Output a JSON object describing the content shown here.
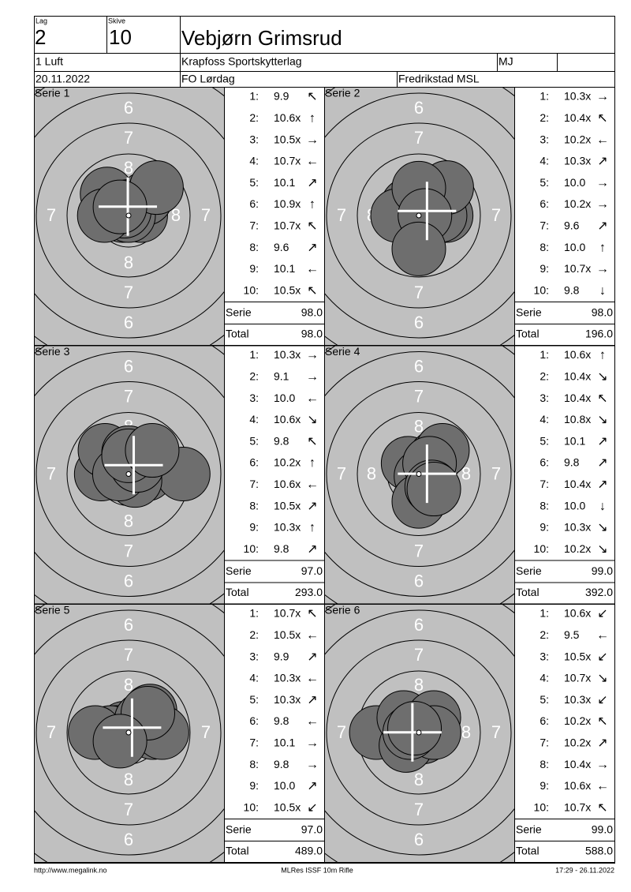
{
  "header": {
    "lag_label": "Lag",
    "lag": "2",
    "skive_label": "Skive",
    "skive": "10",
    "name": "Vebjørn Grimsrud",
    "class": "1 Luft",
    "club": "Krapfoss Sportskytterlag",
    "code": "MJ",
    "date": "20.11.2022",
    "event": "FO Lørdag",
    "location": "Fredrikstad MSL"
  },
  "ring_labels": [
    "6",
    "7",
    "8"
  ],
  "series": [
    {
      "title": "Serie 1",
      "shots": [
        {
          "no": "1:",
          "value": "9.9",
          "arrow": "↖"
        },
        {
          "no": "2:",
          "value": "10.6x",
          "arrow": "↑"
        },
        {
          "no": "3:",
          "value": "10.5x",
          "arrow": "→"
        },
        {
          "no": "4:",
          "value": "10.7x",
          "arrow": "←"
        },
        {
          "no": "5:",
          "value": "10.1",
          "arrow": "↗"
        },
        {
          "no": "6:",
          "value": "10.9x",
          "arrow": "↑"
        },
        {
          "no": "7:",
          "value": "10.7x",
          "arrow": "↖"
        },
        {
          "no": "8:",
          "value": "9.6",
          "arrow": "↗"
        },
        {
          "no": "9:",
          "value": "10.1",
          "arrow": "←"
        },
        {
          "no": "10:",
          "value": "10.5x",
          "arrow": "↖"
        }
      ],
      "serie_label": "Serie",
      "serie": "98.0",
      "total_label": "Total",
      "total": "98.0"
    },
    {
      "title": "Serie 2",
      "shots": [
        {
          "no": "1:",
          "value": "10.3x",
          "arrow": "→"
        },
        {
          "no": "2:",
          "value": "10.4x",
          "arrow": "↖"
        },
        {
          "no": "3:",
          "value": "10.2x",
          "arrow": "←"
        },
        {
          "no": "4:",
          "value": "10.3x",
          "arrow": "↗"
        },
        {
          "no": "5:",
          "value": "10.0",
          "arrow": "→"
        },
        {
          "no": "6:",
          "value": "10.2x",
          "arrow": "→"
        },
        {
          "no": "7:",
          "value": "9.6",
          "arrow": "↗"
        },
        {
          "no": "8:",
          "value": "10.0",
          "arrow": "↑"
        },
        {
          "no": "9:",
          "value": "10.7x",
          "arrow": "→"
        },
        {
          "no": "10:",
          "value": "9.8",
          "arrow": "↓"
        }
      ],
      "serie_label": "Serie",
      "serie": "98.0",
      "total_label": "Total",
      "total": "196.0"
    },
    {
      "title": "Serie 3",
      "shots": [
        {
          "no": "1:",
          "value": "10.3x",
          "arrow": "→"
        },
        {
          "no": "2:",
          "value": "9.1",
          "arrow": "→"
        },
        {
          "no": "3:",
          "value": "10.0",
          "arrow": "←"
        },
        {
          "no": "4:",
          "value": "10.6x",
          "arrow": "↘"
        },
        {
          "no": "5:",
          "value": "9.8",
          "arrow": "↖"
        },
        {
          "no": "6:",
          "value": "10.2x",
          "arrow": "↑"
        },
        {
          "no": "7:",
          "value": "10.6x",
          "arrow": "←"
        },
        {
          "no": "8:",
          "value": "10.5x",
          "arrow": "↗"
        },
        {
          "no": "9:",
          "value": "10.3x",
          "arrow": "↑"
        },
        {
          "no": "10:",
          "value": "9.8",
          "arrow": "↗"
        }
      ],
      "serie_label": "Serie",
      "serie": "97.0",
      "total_label": "Total",
      "total": "293.0"
    },
    {
      "title": "Serie 4",
      "shots": [
        {
          "no": "1:",
          "value": "10.6x",
          "arrow": "↑"
        },
        {
          "no": "2:",
          "value": "10.4x",
          "arrow": "↘"
        },
        {
          "no": "3:",
          "value": "10.4x",
          "arrow": "↖"
        },
        {
          "no": "4:",
          "value": "10.8x",
          "arrow": "↘"
        },
        {
          "no": "5:",
          "value": "10.1",
          "arrow": "↗"
        },
        {
          "no": "6:",
          "value": "9.8",
          "arrow": "↗"
        },
        {
          "no": "7:",
          "value": "10.4x",
          "arrow": "↗"
        },
        {
          "no": "8:",
          "value": "10.0",
          "arrow": "↓"
        },
        {
          "no": "9:",
          "value": "10.3x",
          "arrow": "↘"
        },
        {
          "no": "10:",
          "value": "10.2x",
          "arrow": "↘"
        }
      ],
      "serie_label": "Serie",
      "serie": "99.0",
      "total_label": "Total",
      "total": "392.0"
    },
    {
      "title": "Serie 5",
      "shots": [
        {
          "no": "1:",
          "value": "10.7x",
          "arrow": "↖"
        },
        {
          "no": "2:",
          "value": "10.5x",
          "arrow": "←"
        },
        {
          "no": "3:",
          "value": "9.9",
          "arrow": "↗"
        },
        {
          "no": "4:",
          "value": "10.3x",
          "arrow": "←"
        },
        {
          "no": "5:",
          "value": "10.3x",
          "arrow": "↗"
        },
        {
          "no": "6:",
          "value": "9.8",
          "arrow": "←"
        },
        {
          "no": "7:",
          "value": "10.1",
          "arrow": "→"
        },
        {
          "no": "8:",
          "value": "9.8",
          "arrow": "→"
        },
        {
          "no": "9:",
          "value": "10.0",
          "arrow": "↗"
        },
        {
          "no": "10:",
          "value": "10.5x",
          "arrow": "↙"
        }
      ],
      "serie_label": "Serie",
      "serie": "97.0",
      "total_label": "Total",
      "total": "489.0"
    },
    {
      "title": "Serie 6",
      "shots": [
        {
          "no": "1:",
          "value": "10.6x",
          "arrow": "↙"
        },
        {
          "no": "2:",
          "value": "9.5",
          "arrow": "←"
        },
        {
          "no": "3:",
          "value": "10.5x",
          "arrow": "↙"
        },
        {
          "no": "4:",
          "value": "10.7x",
          "arrow": "↘"
        },
        {
          "no": "5:",
          "value": "10.3x",
          "arrow": "↙"
        },
        {
          "no": "6:",
          "value": "10.2x",
          "arrow": "↖"
        },
        {
          "no": "7:",
          "value": "10.2x",
          "arrow": "↗"
        },
        {
          "no": "8:",
          "value": "10.4x",
          "arrow": "→"
        },
        {
          "no": "9:",
          "value": "10.6x",
          "arrow": "←"
        },
        {
          "no": "10:",
          "value": "10.7x",
          "arrow": "↖"
        }
      ],
      "serie_label": "Serie",
      "serie": "99.0",
      "total_label": "Total",
      "total": "588.0"
    }
  ],
  "footer": {
    "url": "http://www.megalink.no",
    "software": "MLRes ISSF 10m Rifle",
    "timestamp": "17:29 - 26.11.2022"
  }
}
